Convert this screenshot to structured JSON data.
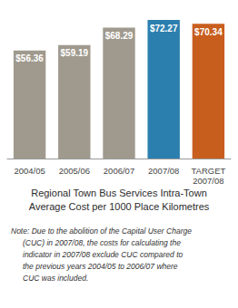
{
  "chart_data": {
    "type": "bar",
    "title": "Regional Town Bus Services Intra-Town\nAverage Cost per 1000 Place Kilometres",
    "categories": [
      "2004/05",
      "2005/06",
      "2006/07",
      "2007/08",
      "TARGET\n2007/08"
    ],
    "values": [
      56.36,
      59.19,
      68.29,
      72.27,
      70.34
    ],
    "value_labels": [
      "$56.36",
      "$59.19",
      "$68.29",
      "$72.27",
      "$70.34"
    ],
    "data_labels": true,
    "colors": [
      "#a09a8e",
      "#a09a8e",
      "#a09a8e",
      "#2b7faf",
      "#c85e1e"
    ],
    "ylim": [
      0,
      78
    ],
    "tick_labels": "x",
    "grid": false,
    "annotations": [
      "Note: Due to the abolition of the Capital User Charge",
      "(CUC) in 2007/08, the costs for calculating the",
      "indicator in 2007/08 exclude CUC compared to",
      "the previous years 2004/05 to 2006/07 where",
      "CUC was included."
    ]
  }
}
